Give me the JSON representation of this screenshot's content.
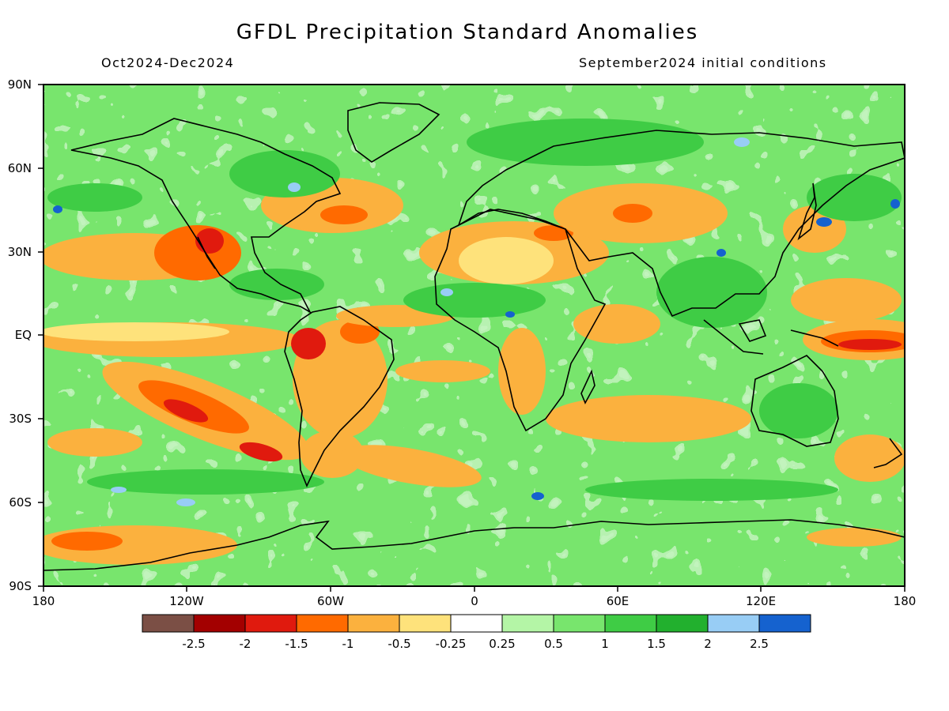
{
  "title": "GFDL Precipitation Standard Anomalies",
  "period": "Oct2024-Dec2024",
  "init": "September2024 initial conditions",
  "lat_labels": [
    "90N",
    "60N",
    "30N",
    "EQ",
    "30S",
    "60S",
    "90S"
  ],
  "lon_labels": [
    "180",
    "120W",
    "60W",
    "0",
    "60E",
    "120E",
    "180"
  ],
  "colorbar": {
    "colors": [
      "#7b4f45",
      "#a30000",
      "#e01a0e",
      "#ff6a00",
      "#fbb13e",
      "#fee27b",
      "#ffffff",
      "#b4f5a6",
      "#78e56d",
      "#3fcc45",
      "#22b02e",
      "#98cdf5",
      "#1562cf"
    ],
    "labels": [
      "-2.5",
      "-2",
      "-1.5",
      "-1",
      "-0.5",
      "-0.25",
      "0.25",
      "0.5",
      "1",
      "1.5",
      "2",
      "2.5"
    ]
  }
}
